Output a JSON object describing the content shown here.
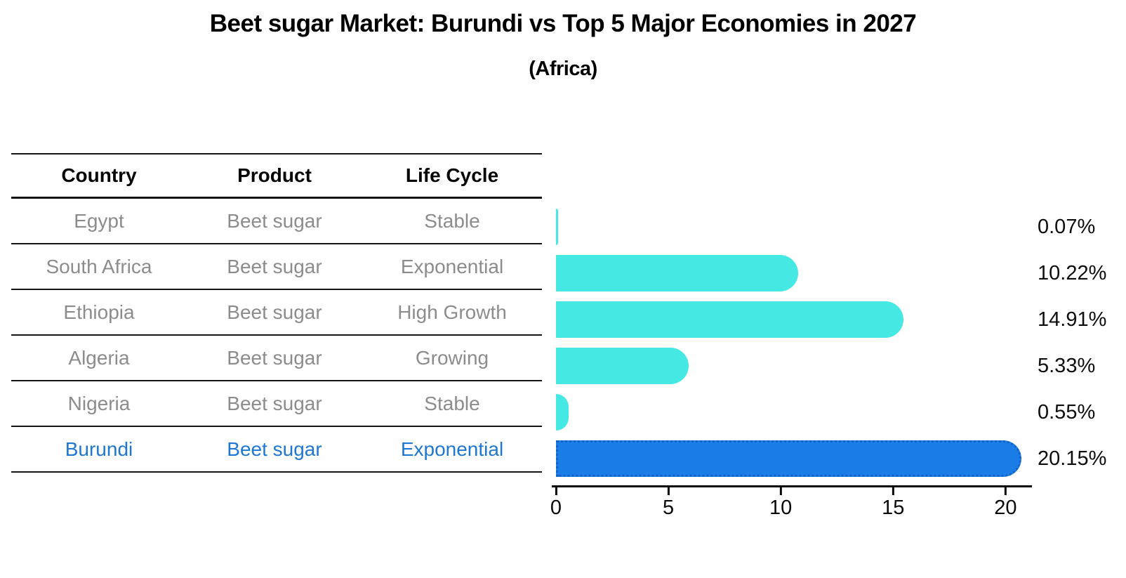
{
  "title": "Beet sugar Market: Burundi vs Top 5 Major Economies in 2027",
  "subtitle": "(Africa)",
  "table": {
    "headers": {
      "country": "Country",
      "product": "Product",
      "life_cycle": "Life Cycle"
    },
    "rows": [
      {
        "country": "Egypt",
        "product": "Beet sugar",
        "life_cycle": "Stable"
      },
      {
        "country": "South Africa",
        "product": "Beet sugar",
        "life_cycle": "Exponential"
      },
      {
        "country": "Ethiopia",
        "product": "Beet sugar",
        "life_cycle": "High Growth"
      },
      {
        "country": "Algeria",
        "product": "Beet sugar",
        "life_cycle": "Growing"
      },
      {
        "country": "Nigeria",
        "product": "Beet sugar",
        "life_cycle": "Stable"
      },
      {
        "country": "Burundi",
        "product": "Beet sugar",
        "life_cycle": "Exponential"
      }
    ],
    "highlight_row_index": 5
  },
  "chart_data": {
    "type": "bar",
    "orientation": "horizontal",
    "categories": [
      "Egypt",
      "South Africa",
      "Ethiopia",
      "Algeria",
      "Nigeria",
      "Burundi"
    ],
    "values": [
      0.07,
      10.22,
      14.91,
      5.33,
      0.55,
      20.15
    ],
    "value_labels": [
      "0.07%",
      "10.22%",
      "14.91%",
      "5.33%",
      "0.55%",
      "20.15%"
    ],
    "xtick_labels": [
      "0",
      "5",
      "10",
      "15",
      "20"
    ],
    "xtick_values": [
      0,
      5,
      10,
      15,
      20
    ],
    "xlim": [
      0,
      20.8
    ],
    "grid": false,
    "legend": false,
    "bar_color": "#46E8E4",
    "highlight_bar_color": "#1B7EE8",
    "highlight_edge_color": "#1563C8",
    "highlight_text_color": "#1F77D4",
    "highlight_index": 5
  }
}
